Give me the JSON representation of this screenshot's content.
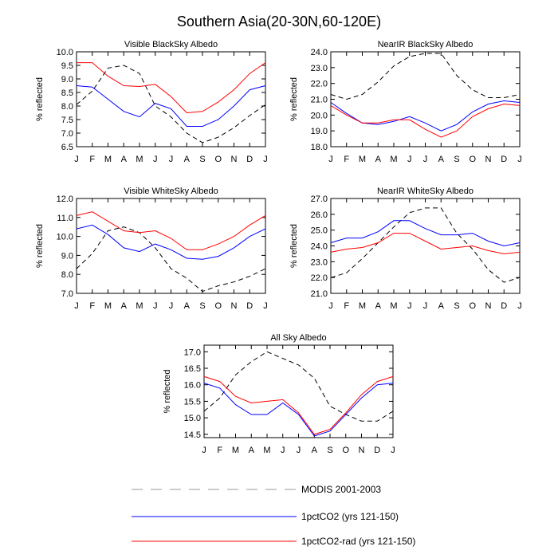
{
  "title": "Southern Asia(20-30N,60-120E)",
  "months": [
    "J",
    "F",
    "M",
    "A",
    "M",
    "J",
    "J",
    "A",
    "S",
    "O",
    "N",
    "D",
    "J"
  ],
  "series_styles": [
    {
      "name": "MODIS 2001-2003",
      "color": "#000000",
      "dash": "6,4",
      "legend_dash": "14,10",
      "legend_color": "#999999"
    },
    {
      "name": "1pctCO2 (yrs 121-150)",
      "color": "#0000ff",
      "dash": "",
      "legend_dash": "",
      "legend_color": "#0000ff"
    },
    {
      "name": "1pctCO2-rad (yrs 121-150)",
      "color": "#ff0000",
      "dash": "",
      "legend_dash": "",
      "legend_color": "#ff0000"
    }
  ],
  "chart_data": [
    {
      "type": "line",
      "title": "Visible BlackSky Albedo",
      "ylabel": "% reflected",
      "ylim": [
        6.5,
        10.0
      ],
      "yticks": [
        6.5,
        7.0,
        7.5,
        8.0,
        8.5,
        9.0,
        9.5,
        10.0
      ],
      "ytick_labels": [
        "6.5",
        "7.0",
        "7.5",
        "8.0",
        "8.5",
        "9.0",
        "9.5",
        "10.0"
      ],
      "series": [
        {
          "values": [
            8.05,
            8.55,
            9.4,
            9.5,
            9.2,
            8.0,
            7.6,
            7.0,
            6.65,
            6.85,
            7.2,
            7.65,
            8.05
          ]
        },
        {
          "values": [
            8.75,
            8.7,
            8.25,
            7.8,
            7.6,
            8.1,
            7.9,
            7.25,
            7.25,
            7.5,
            8.0,
            8.6,
            8.75
          ]
        },
        {
          "values": [
            9.6,
            9.6,
            9.1,
            8.75,
            8.72,
            8.8,
            8.35,
            7.75,
            7.8,
            8.15,
            8.6,
            9.2,
            9.6
          ]
        }
      ]
    },
    {
      "type": "line",
      "title": "NearIR BlackSky Albedo",
      "ylabel": "% reflected",
      "ylim": [
        18.0,
        24.0
      ],
      "yticks": [
        18.0,
        19.0,
        20.0,
        21.0,
        22.0,
        23.0,
        24.0
      ],
      "ytick_labels": [
        "18.0",
        "19.0",
        "20.0",
        "21.0",
        "22.0",
        "23.0",
        "24.0"
      ],
      "series": [
        {
          "values": [
            21.3,
            21.0,
            21.3,
            22.1,
            23.1,
            23.7,
            23.9,
            23.9,
            22.5,
            21.6,
            21.1,
            21.1,
            21.3
          ]
        },
        {
          "values": [
            20.8,
            20.1,
            19.5,
            19.4,
            19.6,
            19.9,
            19.5,
            19.0,
            19.4,
            20.2,
            20.7,
            20.9,
            20.8
          ]
        },
        {
          "values": [
            20.6,
            20.0,
            19.5,
            19.5,
            19.7,
            19.7,
            19.1,
            18.6,
            19.0,
            19.9,
            20.4,
            20.7,
            20.6
          ]
        }
      ]
    },
    {
      "type": "line",
      "title": "Visible WhiteSky Albedo",
      "ylabel": "% reflected",
      "ylim": [
        7.0,
        12.0
      ],
      "yticks": [
        7.0,
        8.0,
        9.0,
        10.0,
        11.0,
        12.0
      ],
      "ytick_labels": [
        "7.0",
        "8.0",
        "9.0",
        "10.0",
        "11.0",
        "12.0"
      ],
      "series": [
        {
          "values": [
            8.3,
            9.1,
            10.3,
            10.5,
            10.2,
            9.4,
            8.3,
            7.8,
            7.1,
            7.4,
            7.6,
            7.9,
            8.3
          ]
        },
        {
          "values": [
            10.4,
            10.6,
            10.1,
            9.4,
            9.2,
            9.6,
            9.3,
            8.85,
            8.8,
            8.95,
            9.4,
            10.0,
            10.4
          ]
        },
        {
          "values": [
            11.1,
            11.3,
            10.8,
            10.3,
            10.2,
            10.3,
            9.9,
            9.3,
            9.3,
            9.6,
            10.0,
            10.6,
            11.1
          ]
        }
      ]
    },
    {
      "type": "line",
      "title": "NearIR WhiteSky Albedo",
      "ylabel": "% reflected",
      "ylim": [
        21.0,
        27.0
      ],
      "yticks": [
        21.0,
        22.0,
        23.0,
        24.0,
        25.0,
        26.0,
        27.0
      ],
      "ytick_labels": [
        "21.0",
        "22.0",
        "23.0",
        "24.0",
        "25.0",
        "26.0",
        "27.0"
      ],
      "series": [
        {
          "values": [
            22.0,
            22.3,
            23.2,
            24.2,
            25.2,
            26.1,
            26.4,
            26.4,
            24.8,
            23.8,
            22.5,
            21.7,
            22.0
          ]
        },
        {
          "values": [
            24.2,
            24.5,
            24.5,
            24.9,
            25.6,
            25.6,
            25.1,
            24.7,
            24.7,
            24.8,
            24.3,
            24.0,
            24.2
          ]
        },
        {
          "values": [
            23.6,
            23.8,
            23.9,
            24.2,
            24.8,
            24.8,
            24.3,
            23.8,
            23.9,
            24.0,
            23.7,
            23.5,
            23.6
          ]
        }
      ]
    },
    {
      "type": "line",
      "title": "All Sky Albedo",
      "ylabel": "% reflected",
      "ylim": [
        14.4,
        17.2
      ],
      "yticks": [
        14.5,
        15.0,
        15.5,
        16.0,
        16.5,
        17.0
      ],
      "ytick_labels": [
        "14.5",
        "15.0",
        "15.5",
        "16.0",
        "16.5",
        "17.0"
      ],
      "series": [
        {
          "values": [
            15.2,
            15.6,
            16.3,
            16.7,
            17.0,
            16.8,
            16.6,
            16.2,
            15.35,
            15.1,
            14.9,
            14.9,
            15.2
          ]
        },
        {
          "values": [
            16.05,
            15.9,
            15.4,
            15.1,
            15.1,
            15.45,
            15.1,
            14.45,
            14.6,
            15.1,
            15.6,
            16.0,
            16.05
          ]
        },
        {
          "values": [
            16.25,
            16.1,
            15.65,
            15.45,
            15.5,
            15.55,
            15.15,
            14.5,
            14.65,
            15.15,
            15.7,
            16.1,
            16.25
          ]
        }
      ]
    }
  ]
}
